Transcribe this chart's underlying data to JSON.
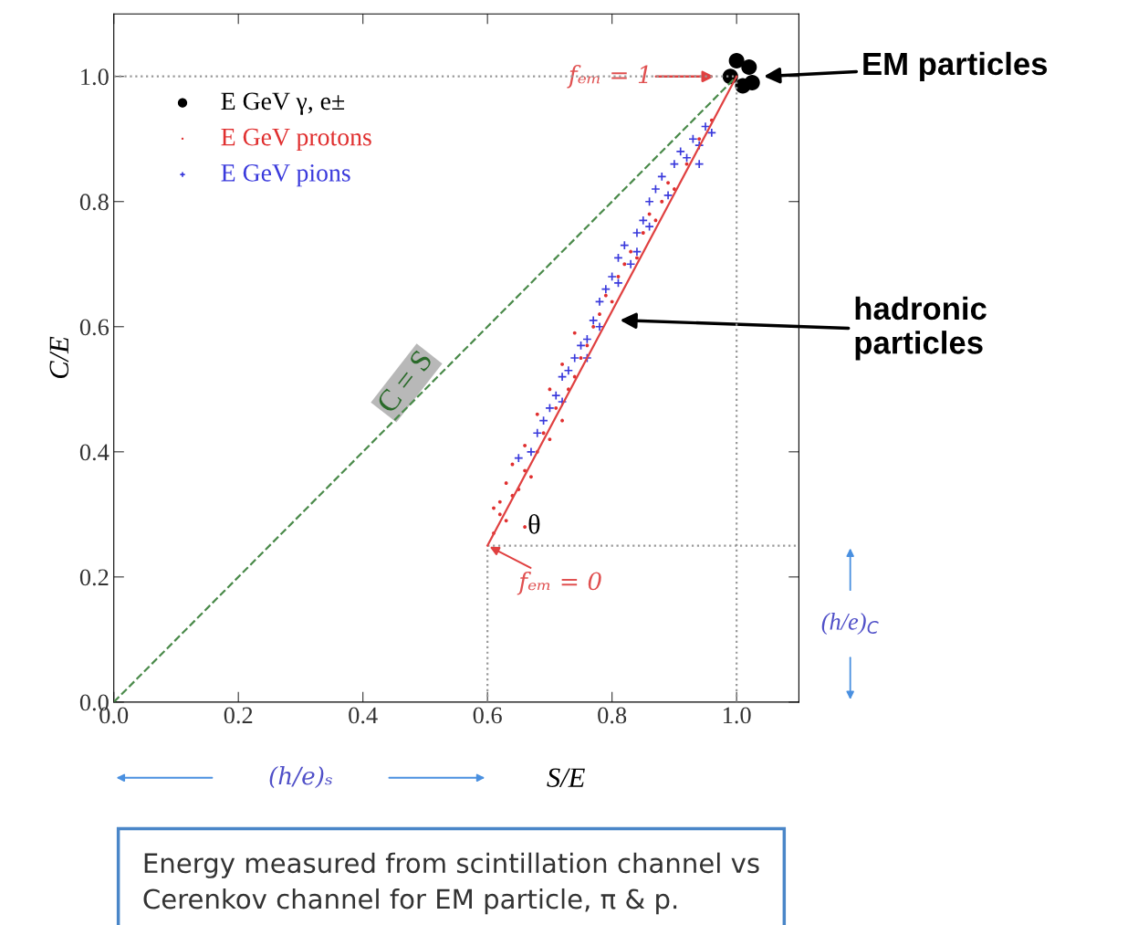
{
  "chart_data": {
    "type": "scatter",
    "xlabel": "S/E",
    "ylabel": "C/E",
    "xlim": [
      0,
      1.1
    ],
    "ylim": [
      0,
      1.1
    ],
    "xticks": [
      {
        "value": 0,
        "label": "0.0"
      },
      {
        "value": 0.2,
        "label": "0.2"
      },
      {
        "value": 0.4,
        "label": "0.4"
      },
      {
        "value": 0.6,
        "label": "0.6"
      },
      {
        "value": 0.8,
        "label": "0.8"
      },
      {
        "value": 1.0,
        "label": "1.0"
      }
    ],
    "yticks": [
      {
        "value": 0,
        "label": "0.0"
      },
      {
        "value": 0.2,
        "label": "0.2"
      },
      {
        "value": 0.4,
        "label": "0.4"
      },
      {
        "value": 0.6,
        "label": "0.6"
      },
      {
        "value": 0.8,
        "label": "0.8"
      },
      {
        "value": 1.0,
        "label": "1.0"
      }
    ],
    "grid": false,
    "legend": "top left",
    "series": [
      {
        "type": "line",
        "color": "#4a8a4a",
        "line_style": "dashed",
        "marker": "none",
        "x": [
          0,
          1.0
        ],
        "values": [
          0,
          1.0
        ]
      },
      {
        "type": "line",
        "color": "#999999",
        "line_style": "dotted",
        "marker": "none",
        "x": [
          0,
          1.0
        ],
        "values": [
          1.0,
          1.0
        ]
      },
      {
        "type": "line",
        "color": "#999999",
        "line_style": "dotted",
        "marker": "none",
        "x": [
          1.0,
          1.0
        ],
        "values": [
          0,
          1.0
        ]
      },
      {
        "type": "line",
        "color": "#999999",
        "line_style": "dotted",
        "marker": "none",
        "x": [
          0.6,
          1.1
        ],
        "values": [
          0.25,
          0.25
        ]
      },
      {
        "type": "line",
        "color": "#999999",
        "line_style": "dotted",
        "marker": "none",
        "x": [
          0.6,
          0.6
        ],
        "values": [
          0,
          0.25
        ]
      },
      {
        "type": "line",
        "color": "#e04040",
        "line_style": "solid",
        "marker": "none",
        "x": [
          0.6,
          1.0
        ],
        "values": [
          0.25,
          1.0
        ]
      },
      {
        "name": "E GeV γ, e±",
        "color": "#000000",
        "marker": "circle",
        "x": [
          0.99,
          1.0,
          1.02,
          1.01,
          1.025
        ],
        "values": [
          1.0,
          1.025,
          1.015,
          0.985,
          0.99
        ]
      },
      {
        "name": "E GeV protons",
        "color": "#e03030",
        "marker": "circle",
        "x": [
          0.61,
          0.62,
          0.63,
          0.62,
          0.64,
          0.63,
          0.65,
          0.66,
          0.64,
          0.67,
          0.68,
          0.66,
          0.69,
          0.7,
          0.68,
          0.71,
          0.72,
          0.7,
          0.73,
          0.74,
          0.72,
          0.75,
          0.76,
          0.74,
          0.77,
          0.78,
          0.79,
          0.8,
          0.81,
          0.82,
          0.83,
          0.84,
          0.85,
          0.86,
          0.87,
          0.88,
          0.89,
          0.9,
          0.92,
          0.94,
          0.96,
          0.66,
          0.61
        ],
        "values": [
          0.27,
          0.3,
          0.29,
          0.32,
          0.33,
          0.35,
          0.34,
          0.37,
          0.38,
          0.36,
          0.4,
          0.41,
          0.43,
          0.42,
          0.46,
          0.47,
          0.45,
          0.5,
          0.5,
          0.52,
          0.54,
          0.55,
          0.57,
          0.59,
          0.6,
          0.62,
          0.65,
          0.64,
          0.68,
          0.7,
          0.72,
          0.71,
          0.75,
          0.78,
          0.77,
          0.8,
          0.83,
          0.82,
          0.86,
          0.9,
          0.93,
          0.28,
          0.31
        ]
      },
      {
        "name": "E GeV pions",
        "color": "#3a3adc",
        "marker": "cross",
        "x": [
          0.65,
          0.67,
          0.68,
          0.69,
          0.7,
          0.71,
          0.72,
          0.72,
          0.73,
          0.74,
          0.75,
          0.76,
          0.77,
          0.78,
          0.78,
          0.79,
          0.8,
          0.81,
          0.81,
          0.82,
          0.83,
          0.84,
          0.85,
          0.86,
          0.86,
          0.87,
          0.88,
          0.89,
          0.9,
          0.91,
          0.92,
          0.93,
          0.94,
          0.95,
          0.96,
          0.94,
          0.84,
          0.76
        ],
        "values": [
          0.39,
          0.4,
          0.43,
          0.45,
          0.47,
          0.49,
          0.48,
          0.52,
          0.53,
          0.55,
          0.57,
          0.58,
          0.61,
          0.6,
          0.64,
          0.66,
          0.68,
          0.67,
          0.71,
          0.73,
          0.7,
          0.75,
          0.77,
          0.76,
          0.8,
          0.82,
          0.84,
          0.81,
          0.86,
          0.88,
          0.87,
          0.9,
          0.89,
          0.92,
          0.91,
          0.86,
          0.72,
          0.55
        ]
      }
    ],
    "annotations": [
      "EM particles",
      "hadronic\nparticles",
      "fₑₘ = 1",
      {
        "text": "fₑₘ = 0",
        "x": 0.6,
        "y": 0.25
      },
      "(h/e)ₛ",
      "(h/e)$_{C}$",
      "C = S",
      "θ",
      "Energy measured from scintillation channel vs\nCerenkov channel for EM particle, π & p."
    ]
  }
}
